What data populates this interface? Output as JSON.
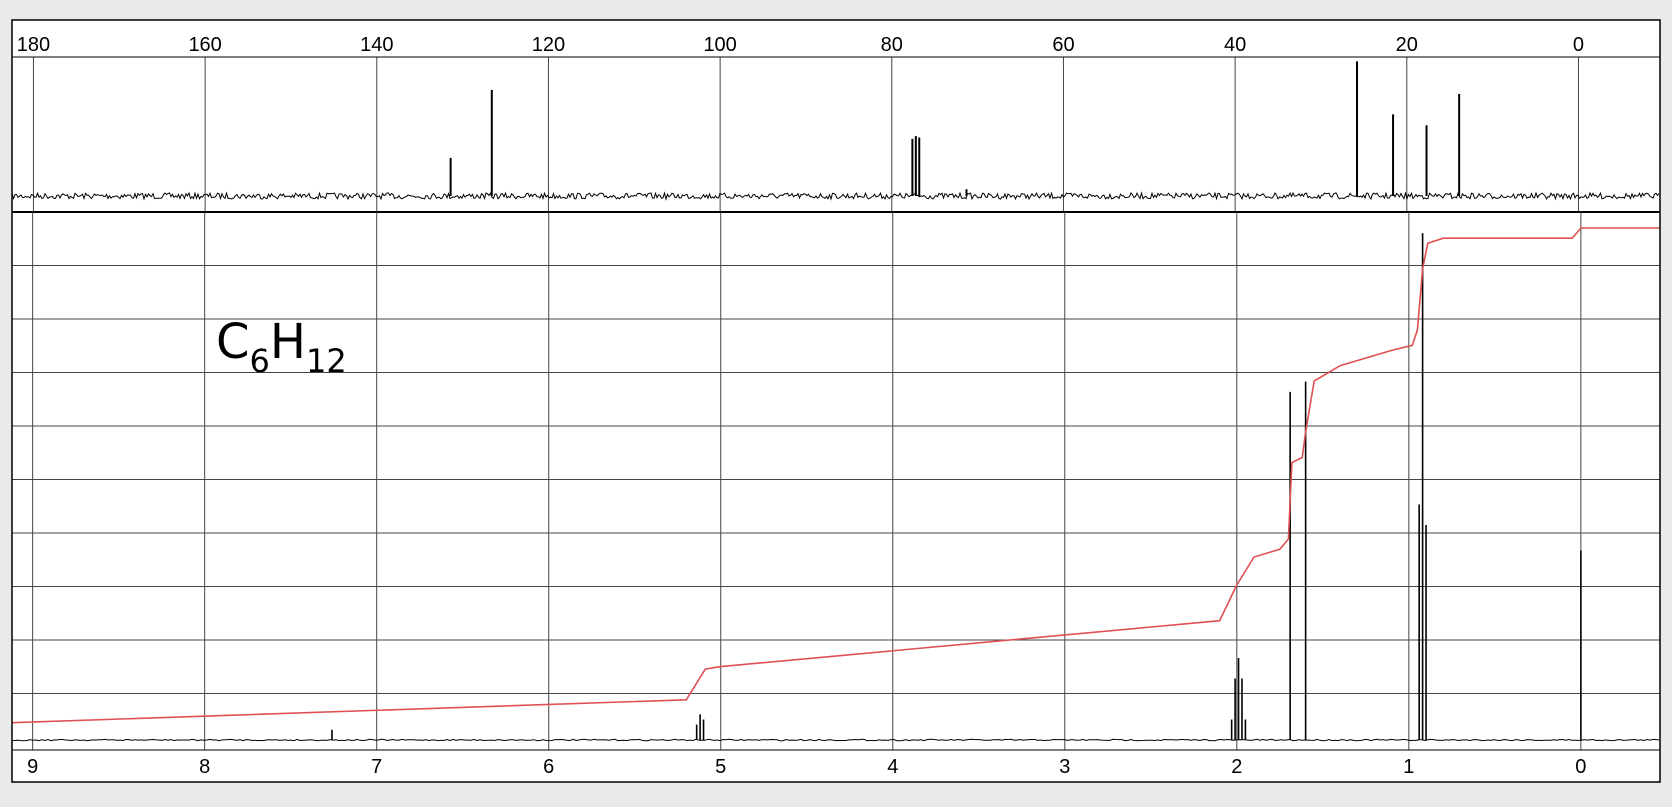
{
  "chart_data": [
    {
      "type": "line",
      "panel": "13C NMR spectrum",
      "x_axis": {
        "ticks": [
          "180",
          "160",
          "140",
          "120",
          "100",
          "80",
          "60",
          "40",
          "20",
          "0"
        ],
        "xlim": [
          182.5,
          -9.5
        ],
        "reversed": true
      },
      "peaks": [
        {
          "x": 131.4,
          "intensity": 0.28
        },
        {
          "x": 126.6,
          "intensity": 0.78
        },
        {
          "x": 77.6,
          "intensity": 0.42
        },
        {
          "x": 77.2,
          "intensity": 0.44
        },
        {
          "x": 76.8,
          "intensity": 0.43
        },
        {
          "x": 71.3,
          "intensity": 0.05
        },
        {
          "x": 25.8,
          "intensity": 0.99
        },
        {
          "x": 21.6,
          "intensity": 0.6
        },
        {
          "x": 17.7,
          "intensity": 0.52
        },
        {
          "x": 13.9,
          "intensity": 0.75
        }
      ],
      "grid": true
    },
    {
      "type": "line",
      "panel": "1H NMR spectrum with integral curve",
      "x_axis": {
        "ticks": [
          "9",
          "8",
          "7",
          "6",
          "5",
          "4",
          "3",
          "2",
          "1",
          "0"
        ],
        "xlim": [
          9.12,
          -0.46
        ],
        "reversed": true
      },
      "peaks": [
        {
          "x": 7.26,
          "intensity": 0.02
        },
        {
          "x": 5.14,
          "intensity": 0.03
        },
        {
          "x": 5.12,
          "intensity": 0.05
        },
        {
          "x": 5.1,
          "intensity": 0.04
        },
        {
          "x": 2.03,
          "intensity": 0.04
        },
        {
          "x": 2.01,
          "intensity": 0.12
        },
        {
          "x": 1.99,
          "intensity": 0.16
        },
        {
          "x": 1.97,
          "intensity": 0.12
        },
        {
          "x": 1.95,
          "intensity": 0.04
        },
        {
          "x": 1.69,
          "intensity": 0.68
        },
        {
          "x": 1.6,
          "intensity": 0.7
        },
        {
          "x": 0.94,
          "intensity": 0.46
        },
        {
          "x": 0.92,
          "intensity": 0.99
        },
        {
          "x": 0.9,
          "intensity": 0.42
        },
        {
          "x": 0.0,
          "intensity": 0.37
        }
      ],
      "integral": {
        "x": [
          9.12,
          5.2,
          5.09,
          5.0,
          2.1,
          2.0,
          1.9,
          1.75,
          1.7,
          1.68,
          1.62,
          1.6,
          1.55,
          1.4,
          1.1,
          0.98,
          0.95,
          0.92,
          0.89,
          0.8,
          0.05,
          0.0,
          -0.05,
          -0.46
        ],
        "y": [
          0.03,
          0.075,
          0.135,
          0.14,
          0.23,
          0.3,
          0.355,
          0.37,
          0.39,
          0.54,
          0.55,
          0.6,
          0.7,
          0.73,
          0.76,
          0.77,
          0.8,
          0.92,
          0.97,
          0.98,
          0.98,
          1.0,
          1.0,
          1.0
        ]
      },
      "integral_color": "#e05050",
      "grid": true
    }
  ],
  "annotation": {
    "formula_element1": "C",
    "formula_sub1": "6",
    "formula_element2": "H",
    "formula_sub2": "12"
  },
  "colors": {
    "background": "#e8ebe8",
    "plot_background": "#ffffff",
    "grid": "#444444",
    "spectrum": "#000000",
    "integral": "#e05050"
  }
}
